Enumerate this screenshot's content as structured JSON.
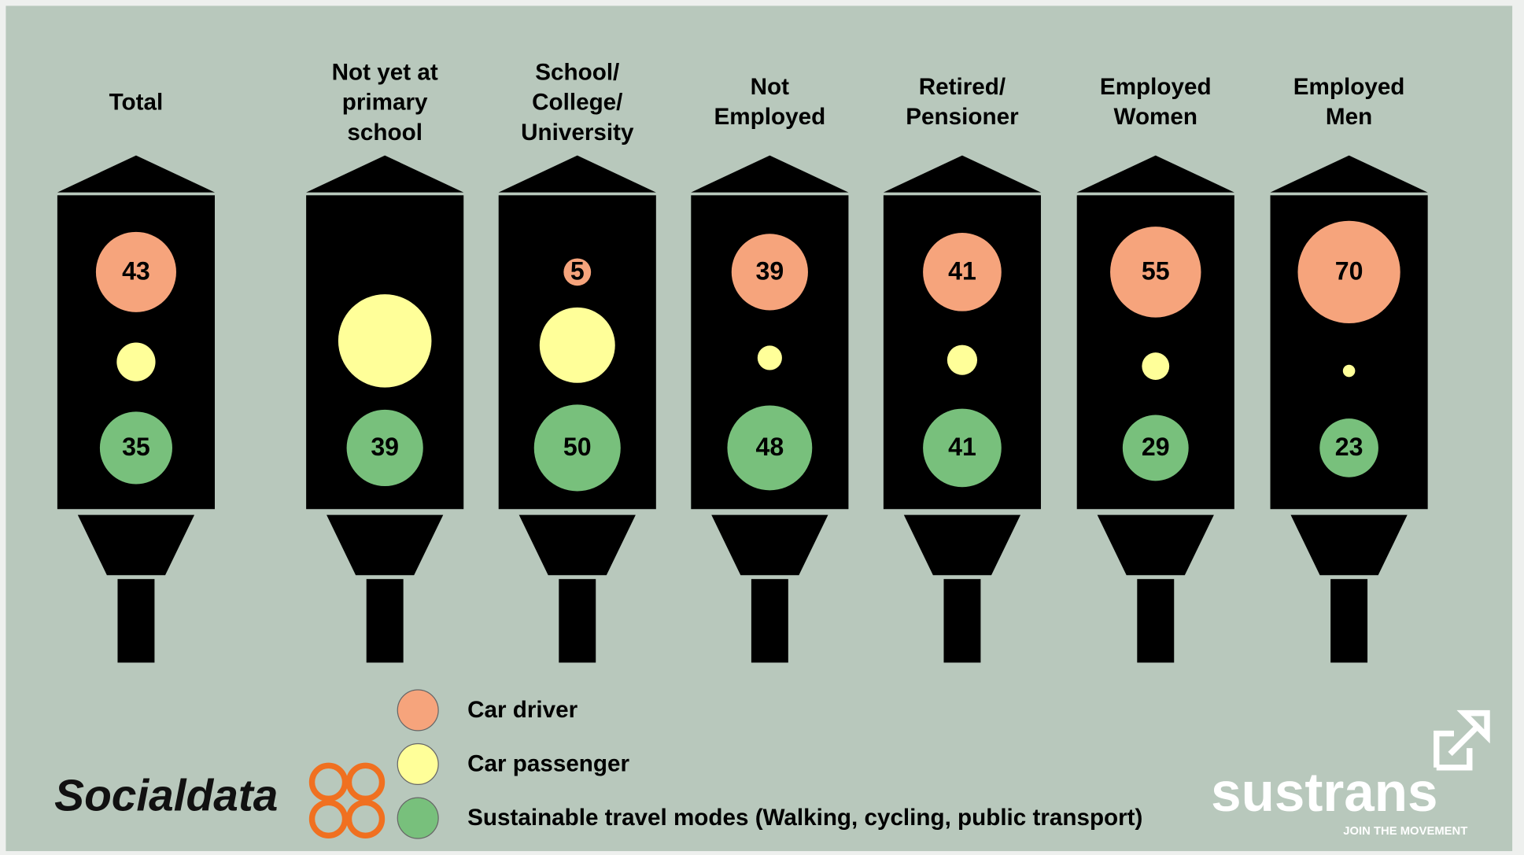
{
  "chart_data": {
    "type": "bubble",
    "categories": [
      "Total",
      "Not yet at\nprimary\nschool",
      "School/\nCollege/\nUniversity",
      "Not\nEmployed",
      "Retired/\nPensioner",
      "Employed\nWomen",
      "Employed\nMen"
    ],
    "series": [
      {
        "name": "Car driver",
        "color": "#f6a47c",
        "values": [
          43,
          null,
          5,
          39,
          41,
          55,
          70
        ]
      },
      {
        "name": "Car passenger",
        "color": "#ffff99",
        "values": [
          10,
          58,
          38,
          4,
          6,
          5,
          1
        ]
      },
      {
        "name": "Sustainable travel modes (Walking, cycling, public transport)",
        "color": "#78c07c",
        "values": [
          35,
          39,
          50,
          48,
          41,
          29,
          23
        ]
      }
    ],
    "annotations": [
      "Socialdata",
      "sustrans",
      "JOIN THE MOVEMENT"
    ]
  }
}
